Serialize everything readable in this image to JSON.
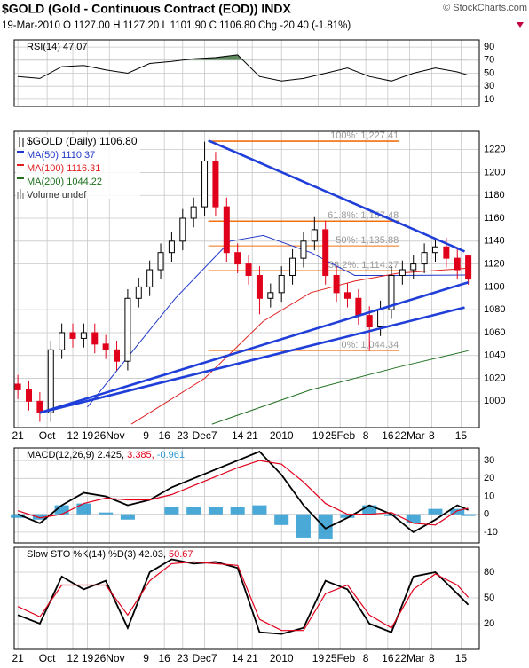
{
  "header": {
    "title": "$GOLD (Gold - Continuous Contract (EOD)) INDX",
    "copyright": "© StockCharts.com",
    "quote": "19-Mar-2010   O 1127.00   H 1127.20   L 1101.90   C 1106.80   Chg -20.40 (-1.81%)"
  },
  "chart_data": [
    {
      "type": "candlestick",
      "name": "$GOLD (Daily) 1106.80",
      "volume_label": "Volume undef",
      "x": [
        0,
        3,
        6,
        9,
        12,
        15,
        18,
        21,
        24,
        27,
        30,
        33,
        36,
        39,
        42,
        45,
        48,
        51,
        54,
        57,
        60,
        63,
        66,
        69,
        72,
        75,
        78,
        81,
        84,
        87,
        90,
        93,
        96,
        99,
        102,
        105,
        108,
        111,
        114,
        117,
        120,
        123
      ],
      "open": [
        1015,
        1010,
        1000,
        990,
        1045,
        1060,
        1055,
        1060,
        1050,
        1045,
        1035,
        1090,
        1100,
        1115,
        1130,
        1140,
        1160,
        1170,
        1210,
        1170,
        1130,
        1120,
        1110,
        1090,
        1095,
        1110,
        1125,
        1140,
        1150,
        1110,
        1095,
        1090,
        1075,
        1065,
        1080,
        1110,
        1115,
        1120,
        1130,
        1135,
        1125,
        1127
      ],
      "high": [
        1023,
        1018,
        1008,
        1053,
        1068,
        1068,
        1068,
        1068,
        1058,
        1053,
        1098,
        1108,
        1123,
        1138,
        1148,
        1168,
        1178,
        1227,
        1218,
        1178,
        1138,
        1128,
        1118,
        1103,
        1118,
        1133,
        1148,
        1161,
        1158,
        1118,
        1103,
        1098,
        1083,
        1088,
        1118,
        1123,
        1128,
        1138,
        1143,
        1143,
        1133,
        1127.2
      ],
      "low": [
        1002,
        992,
        982,
        982,
        1037,
        1047,
        1047,
        1042,
        1037,
        1027,
        1027,
        1082,
        1092,
        1107,
        1122,
        1132,
        1152,
        1162,
        1162,
        1122,
        1112,
        1102,
        1076,
        1082,
        1087,
        1102,
        1117,
        1132,
        1102,
        1087,
        1082,
        1067,
        1044,
        1057,
        1072,
        1102,
        1107,
        1112,
        1122,
        1117,
        1107,
        1101.9
      ],
      "close": [
        1010,
        1000,
        990,
        1045,
        1060,
        1055,
        1060,
        1050,
        1045,
        1035,
        1090,
        1100,
        1115,
        1130,
        1140,
        1160,
        1170,
        1210,
        1170,
        1130,
        1120,
        1110,
        1090,
        1095,
        1110,
        1125,
        1140,
        1150,
        1110,
        1095,
        1090,
        1075,
        1065,
        1080,
        1110,
        1115,
        1120,
        1130,
        1135,
        1125,
        1115,
        1106.8
      ],
      "up_color": "#000000",
      "down_color": "#e0001b",
      "ylim": [
        977,
        1236
      ],
      "yticks": [
        1000,
        1020,
        1040,
        1060,
        1080,
        1100,
        1120,
        1140,
        1160,
        1180,
        1200,
        1220
      ],
      "xlim": [
        -1,
        126
      ],
      "xticks": [
        {
          "value": 0,
          "label": "21"
        },
        {
          "value": 8,
          "label": "Oct"
        },
        {
          "value": 15,
          "label": "12"
        },
        {
          "value": 19,
          "label": "19"
        },
        {
          "value": 25,
          "label": "26Nov"
        },
        {
          "value": 35,
          "label": "9"
        },
        {
          "value": 40,
          "label": "16"
        },
        {
          "value": 45,
          "label": "23"
        },
        {
          "value": 51,
          "label": "Dec7"
        },
        {
          "value": 60,
          "label": "14"
        },
        {
          "value": 64,
          "label": "21"
        },
        {
          "value": 72,
          "label": "2010"
        },
        {
          "value": 82,
          "label": "19"
        },
        {
          "value": 88,
          "label": "25Feb"
        },
        {
          "value": 95,
          "label": "8"
        },
        {
          "value": 101,
          "label": "16"
        },
        {
          "value": 107,
          "label": "22Mar"
        },
        {
          "value": 113,
          "label": "8"
        },
        {
          "value": 121,
          "label": "15"
        }
      ],
      "series": [
        {
          "name": "MA(50) 1110.37",
          "color": "#2038c8",
          "x": [
            19,
            43,
            58,
            67,
            80,
            92,
            104,
            123
          ],
          "values": [
            995,
            1090,
            1140,
            1145,
            1130,
            1110,
            1110,
            1110.37
          ]
        },
        {
          "name": "MA(100) 1116.31",
          "color": "#e02020",
          "x": [
            31,
            51,
            67,
            80,
            92,
            104,
            123
          ],
          "values": [
            980,
            1020,
            1070,
            1095,
            1105,
            1112,
            1116.31
          ]
        },
        {
          "name": "MA(200) 1044.22",
          "color": "#207020",
          "x": [
            53,
            80,
            104,
            123
          ],
          "values": [
            980,
            1010,
            1030,
            1044.22
          ]
        }
      ],
      "fib_x": [
        52,
        104
      ],
      "fib_color": "#f07010",
      "fib": [
        {
          "value": 1227.41,
          "label": "100%: 1,227.41"
        },
        {
          "value": 1157.48,
          "label": "61.8%: 1,157.48"
        },
        {
          "value": 1135.88,
          "label": "50%: 1,135.88"
        },
        {
          "value": 1114.27,
          "label": "38.2%: 1,114.27"
        },
        {
          "value": 1044.34,
          "label": "0%: 1,044.34"
        }
      ],
      "trend_color": "#1f3fd8",
      "trendlines": [
        {
          "x": [
            6,
            123
          ],
          "values": [
            990,
            1104
          ]
        },
        {
          "x": [
            6,
            122
          ],
          "values": [
            990,
            1082
          ]
        },
        {
          "x": [
            52,
            122
          ],
          "values": [
            1228,
            1131
          ]
        }
      ]
    },
    {
      "type": "line",
      "title": "RSI(14) 47.07",
      "color": "#000000",
      "fill_above": 70,
      "fill_color": "#5e8a5e",
      "x": [
        0,
        6,
        12,
        18,
        24,
        30,
        36,
        42,
        48,
        54,
        60,
        66,
        72,
        78,
        84,
        90,
        96,
        102,
        108,
        114,
        120,
        123
      ],
      "values": [
        45,
        42,
        60,
        62,
        55,
        50,
        65,
        68,
        72,
        74,
        78,
        45,
        38,
        42,
        50,
        58,
        45,
        38,
        50,
        58,
        52,
        47.07
      ],
      "ylim": [
        -1,
        101
      ],
      "yticks": [
        10,
        30,
        50,
        70,
        90
      ]
    },
    {
      "type": "macd",
      "title": "MACD(12,26,9)",
      "x": [
        0,
        6,
        12,
        18,
        24,
        30,
        36,
        42,
        48,
        54,
        60,
        66,
        72,
        78,
        84,
        90,
        96,
        102,
        108,
        114,
        120,
        123
      ],
      "series": [
        {
          "name": "2.425,",
          "color": "#000000",
          "values": [
            0,
            -5,
            5,
            12,
            10,
            5,
            8,
            15,
            20,
            25,
            30,
            35,
            22,
            5,
            -8,
            -2,
            5,
            0,
            -10,
            -3,
            5,
            2.425
          ]
        },
        {
          "name": "3.385,",
          "color": "#e0001b",
          "values": [
            2,
            -2,
            0,
            6,
            9,
            8,
            8,
            11,
            16,
            21,
            26,
            30,
            28,
            18,
            6,
            0,
            0,
            1,
            -5,
            -6,
            2,
            3.385
          ]
        },
        {
          "name": "-0.961",
          "color": "#2a9ad0",
          "bars": true,
          "values": [
            -2,
            -3,
            5,
            6,
            1,
            -3,
            0,
            4,
            4,
            4,
            4,
            5,
            -6,
            -13,
            -14,
            -2,
            5,
            -1,
            -5,
            3,
            3,
            -0.961
          ]
        }
      ],
      "ylim": [
        -16,
        37
      ],
      "yticks": [
        -10,
        0,
        10,
        20,
        30
      ]
    },
    {
      "type": "sto",
      "title": "Slow STO %K(14) %D(3)",
      "x": [
        0,
        6,
        12,
        18,
        24,
        30,
        36,
        42,
        48,
        54,
        60,
        66,
        72,
        78,
        84,
        90,
        96,
        102,
        108,
        114,
        120,
        123
      ],
      "series": [
        {
          "name": "42.03,",
          "color": "#000000",
          "values": [
            30,
            20,
            75,
            60,
            70,
            15,
            80,
            95,
            90,
            92,
            85,
            10,
            8,
            15,
            70,
            60,
            20,
            10,
            75,
            80,
            55,
            42.03
          ]
        },
        {
          "name": "50.67",
          "color": "#e0001b",
          "values": [
            40,
            28,
            65,
            65,
            65,
            30,
            70,
            90,
            92,
            90,
            88,
            25,
            12,
            12,
            55,
            65,
            30,
            15,
            60,
            78,
            65,
            50.67
          ]
        }
      ],
      "ylim": [
        -10,
        109
      ],
      "yticks": [
        20,
        50,
        80
      ]
    }
  ]
}
